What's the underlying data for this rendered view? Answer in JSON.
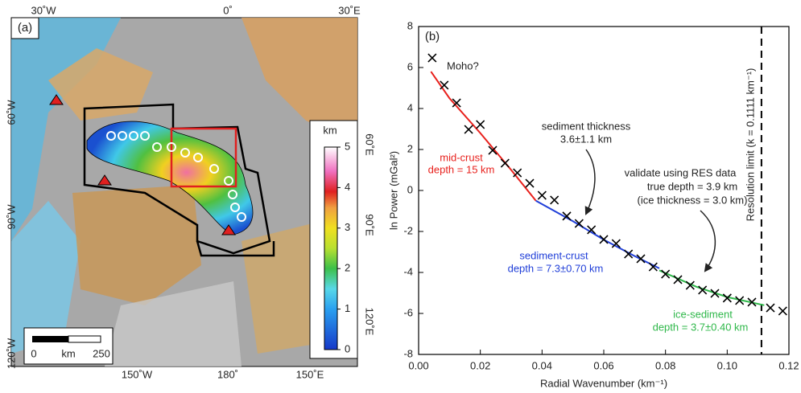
{
  "map": {
    "panel_label": "(a)",
    "top_labels": [
      "30˚W",
      "0˚",
      "30˚E"
    ],
    "left_labels": [
      "60˚W",
      "90˚W",
      "120˚W"
    ],
    "bottom_labels": [
      "150˚W",
      "180˚",
      "150˚E"
    ],
    "right_labels": [
      "60˚E",
      "90˚E",
      "120˚E"
    ],
    "colorbar": {
      "title": "km",
      "ticks": [
        0,
        1,
        2,
        3,
        4,
        5
      ]
    },
    "scale": {
      "labels": [
        "0",
        "km",
        "250"
      ]
    }
  },
  "chart_data": {
    "type": "scatter",
    "panel_label": "(b)",
    "x_label": "Radial Wavenumber (km⁻¹)",
    "y_label": "ln Power (mGal²)",
    "xlim": [
      0,
      0.12
    ],
    "ylim": [
      -8,
      8
    ],
    "xticks": [
      {
        "value": 0,
        "label": "0.00"
      },
      {
        "value": 0.02,
        "label": "0.02"
      },
      {
        "value": 0.04,
        "label": "0.04"
      },
      {
        "value": 0.06,
        "label": "0.06"
      },
      {
        "value": 0.08,
        "label": "0.08"
      },
      {
        "value": 0.1,
        "label": "0.10"
      },
      {
        "value": 0.12,
        "label": "0.12"
      }
    ],
    "yticks": [
      -8,
      -6,
      -4,
      -2,
      0,
      2,
      4,
      6,
      8
    ],
    "marker": "x",
    "color": "#000000",
    "x": [
      0.0044,
      0.0083,
      0.0123,
      0.0162,
      0.02,
      0.024,
      0.028,
      0.032,
      0.036,
      0.04,
      0.044,
      0.048,
      0.052,
      0.056,
      0.06,
      0.064,
      0.068,
      0.072,
      0.076,
      0.08,
      0.084,
      0.088,
      0.092,
      0.096,
      0.1,
      0.104,
      0.108,
      0.114,
      0.118
    ],
    "values": [
      6.47,
      5.14,
      4.27,
      2.98,
      3.22,
      1.96,
      1.33,
      0.86,
      0.35,
      -0.24,
      -0.47,
      -1.25,
      -1.61,
      -1.92,
      -2.39,
      -2.59,
      -3.1,
      -3.33,
      -3.73,
      -4.08,
      -4.35,
      -4.63,
      -4.86,
      -5.02,
      -5.25,
      -5.37,
      -5.45,
      -5.73,
      -5.88
    ],
    "lines": [
      {
        "color": "#e8201c",
        "x": [
          0.004,
          0.01,
          0.02,
          0.03,
          0.038
        ],
        "values": [
          5.8,
          4.5,
          2.8,
          1.0,
          -0.5
        ]
      },
      {
        "color": "#1f3ed8",
        "x": [
          0.038,
          0.05,
          0.06,
          0.07,
          0.078
        ],
        "values": [
          -0.5,
          -1.5,
          -2.4,
          -3.2,
          -3.8
        ]
      },
      {
        "color": "#2fb84a",
        "x": [
          0.078,
          0.09,
          0.1,
          0.112
        ],
        "values": [
          -3.9,
          -4.7,
          -5.2,
          -5.6
        ]
      }
    ],
    "vline": {
      "value": 0.1111,
      "label": "Resolution limit (k = 0.1111 km⁻¹)"
    },
    "annotations": [
      {
        "text": "Moho?",
        "color": "#222222"
      },
      {
        "text": "mid-crust",
        "color": "#e8201c"
      },
      {
        "text": "depth = 15 km",
        "color": "#e8201c"
      },
      {
        "text": "sediment thickness",
        "color": "#222222"
      },
      {
        "text": "3.6±1.1 km",
        "color": "#222222"
      },
      {
        "text": "validate using RES data",
        "color": "#222222"
      },
      {
        "text": "true depth = 3.9 km",
        "color": "#222222"
      },
      {
        "text": "(ice thickness = 3.0 km)",
        "color": "#222222"
      },
      {
        "text": "sediment-crust",
        "color": "#1f3ed8"
      },
      {
        "text": "depth = 7.3±0.70 km",
        "color": "#1f3ed8"
      },
      {
        "text": "ice-sediment",
        "color": "#2fb84a"
      },
      {
        "text": "depth = 3.7±0.40 km",
        "color": "#2fb84a"
      }
    ]
  }
}
